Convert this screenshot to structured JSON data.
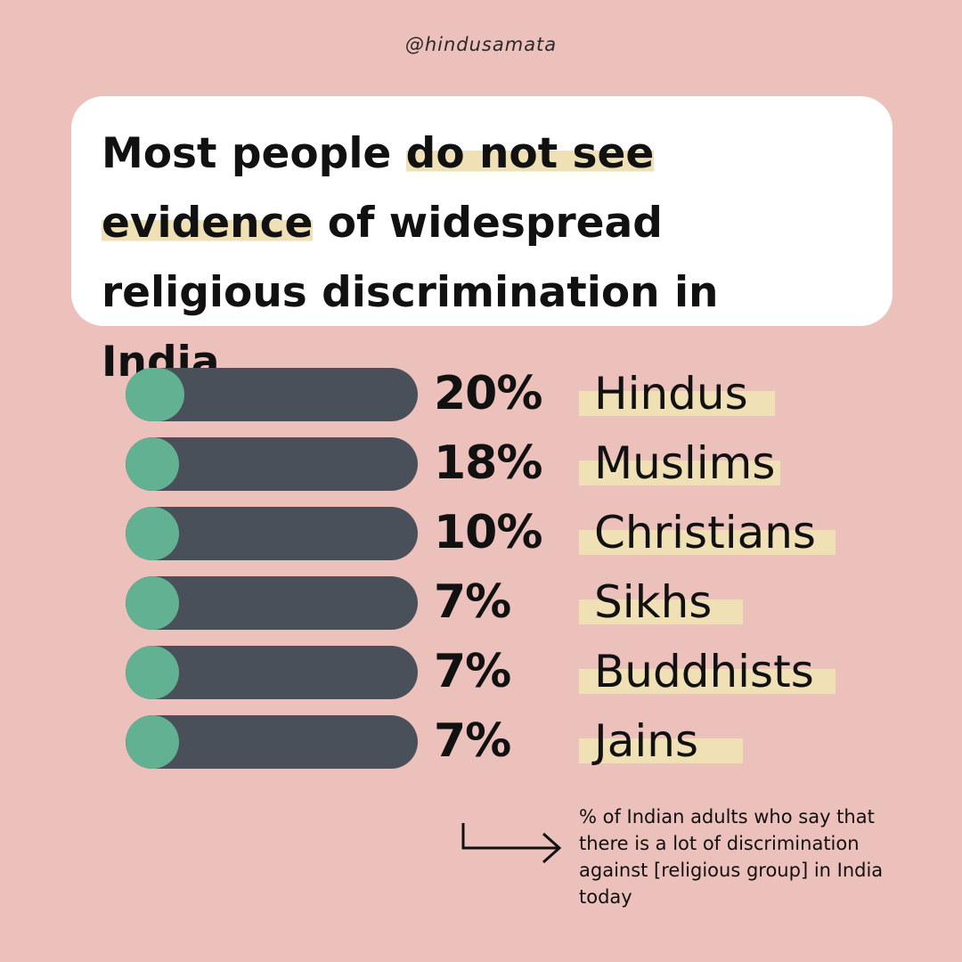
{
  "handle": "@hindusamata",
  "headline": {
    "part1": "Most people ",
    "highlight": "do not see evidence",
    "part2": " of widespread religious discrimination in India."
  },
  "chart_data": {
    "type": "bar",
    "orientation": "horizontal",
    "unit": "%",
    "categories": [
      "Hindus",
      "Muslims",
      "Christians",
      "Sikhs",
      "Buddhists",
      "Jains"
    ],
    "values": [
      20,
      18,
      10,
      7,
      7,
      7
    ],
    "value_labels": [
      "20%",
      "18%",
      "10%",
      "7%",
      "7%",
      "7%"
    ],
    "xlim": [
      0,
      100
    ]
  },
  "note": "% of Indian adults who say that there is a lot of discrimination against [religious group] in India today",
  "colors": {
    "background": "#ecc0bb",
    "track": "#4a5059",
    "fill": "#62b193",
    "highlight": "#efe0b5"
  }
}
